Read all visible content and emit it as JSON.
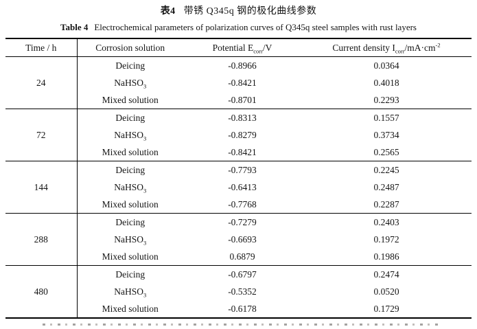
{
  "title_cn": {
    "label": "表4",
    "text": "带锈 Q345q 钢的极化曲线参数"
  },
  "title_en": {
    "label": "Table 4",
    "text": "Electrochemical parameters of polarization curves of Q345q steel samples with rust layers"
  },
  "table": {
    "headers": {
      "time": "Time / h",
      "solution": "Corrosion solution",
      "potential": {
        "pre": "Potential E",
        "sub": "corr",
        "post": "/V"
      },
      "current": {
        "pre": "Current density I",
        "sub": "corr",
        "mid": "/mA·cm",
        "sup": "-2"
      }
    },
    "groups": [
      {
        "time": "24",
        "rows": [
          {
            "solution": "Deicing",
            "potential": "-0.8966",
            "current": "0.0364"
          },
          {
            "solution_pre": "NaHSO",
            "solution_sub": "3",
            "potential": "-0.8421",
            "current": "0.4018"
          },
          {
            "solution": "Mixed solution",
            "potential": "-0.8701",
            "current": "0.2293"
          }
        ]
      },
      {
        "time": "72",
        "rows": [
          {
            "solution": "Deicing",
            "potential": "-0.8313",
            "current": "0.1557"
          },
          {
            "solution_pre": "NaHSO",
            "solution_sub": "3",
            "potential": "-0.8279",
            "current": "0.3734"
          },
          {
            "solution": "Mixed solution",
            "potential": "-0.8421",
            "current": "0.2565"
          }
        ]
      },
      {
        "time": "144",
        "rows": [
          {
            "solution": "Deicing",
            "potential": "-0.7793",
            "current": "0.2245"
          },
          {
            "solution_pre": "NaHSO",
            "solution_sub": "3",
            "potential": "-0.6413",
            "current": "0.2487"
          },
          {
            "solution": "Mixed solution",
            "potential": "-0.7768",
            "current": "0.2287"
          }
        ]
      },
      {
        "time": "288",
        "rows": [
          {
            "solution": "Deicing",
            "potential": "-0.7279",
            "current": "0.2403"
          },
          {
            "solution_pre": "NaHSO",
            "solution_sub": "3",
            "potential": "-0.6693",
            "current": "0.1972"
          },
          {
            "solution": "Mixed solution",
            "potential": "0.6879",
            "current": "0.1986"
          }
        ]
      },
      {
        "time": "480",
        "rows": [
          {
            "solution": "Deicing",
            "potential": "-0.6797",
            "current": "0.2474"
          },
          {
            "solution_pre": "NaHSO",
            "solution_sub": "3",
            "potential": "-0.5352",
            "current": "0.0520"
          },
          {
            "solution": "Mixed solution",
            "potential": "-0.6178",
            "current": "0.1729"
          }
        ]
      }
    ]
  }
}
